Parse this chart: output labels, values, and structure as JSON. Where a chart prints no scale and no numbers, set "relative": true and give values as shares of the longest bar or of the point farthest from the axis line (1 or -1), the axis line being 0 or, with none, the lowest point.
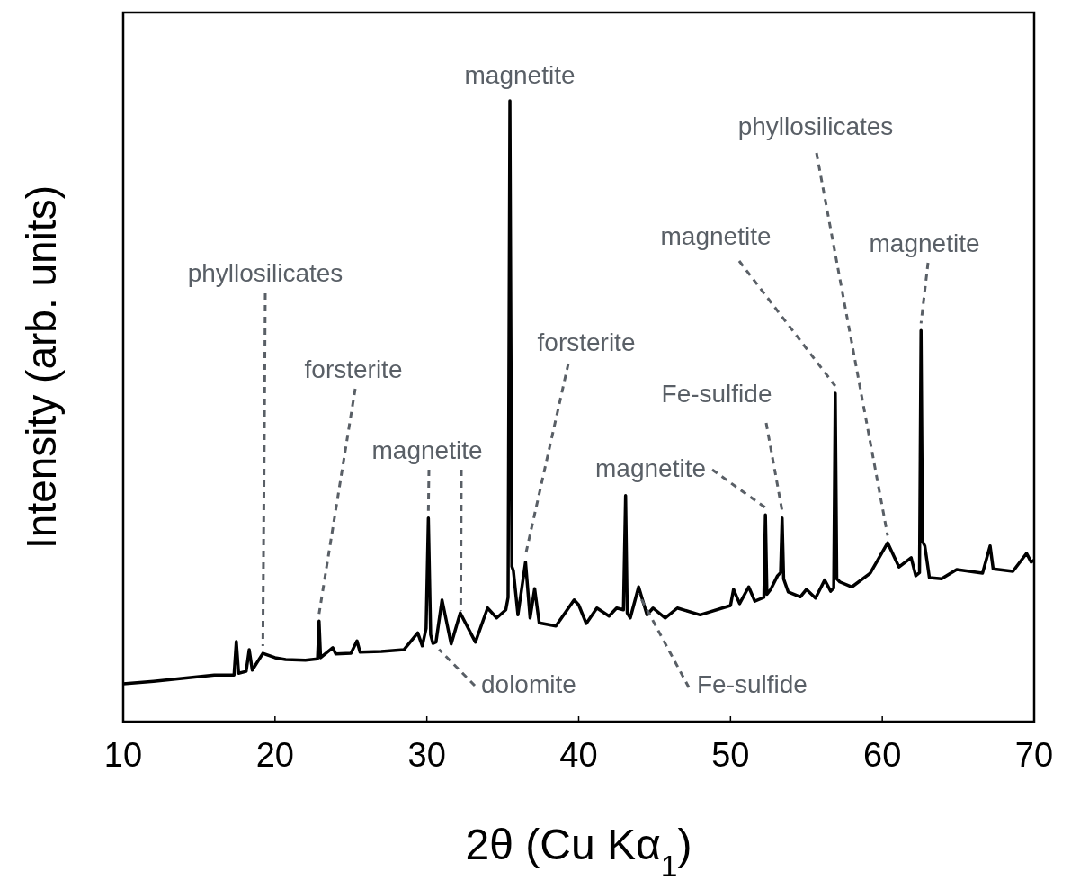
{
  "chart_data": {
    "type": "line",
    "relative": true,
    "xlabel": "2θ (Cu Kα$_{1}$)",
    "ylabel": "Intensity (arb. units)",
    "xlim": [
      10,
      70
    ],
    "xticks": [
      10,
      20,
      30,
      40,
      50,
      60,
      70
    ],
    "marker": "none",
    "line_style": "solid",
    "series": [
      {
        "color": "#000000",
        "x": [
          10,
          12,
          14,
          16,
          17.3,
          17.45,
          17.6,
          18.1,
          18.3,
          18.5,
          19.2,
          20.0,
          20.7,
          22.0,
          22.8,
          22.9,
          23.0,
          23.8,
          24.0,
          25.0,
          25.4,
          25.6,
          27.0,
          28.5,
          29.4,
          29.7,
          29.95,
          30.1,
          30.25,
          30.4,
          30.6,
          31.0,
          31.6,
          32.2,
          33.2,
          34.0,
          34.6,
          35.2,
          35.35,
          35.47,
          35.6,
          35.7,
          36.0,
          36.5,
          36.8,
          37.1,
          37.4,
          38.5,
          39.7,
          40.0,
          40.5,
          41.2,
          42.0,
          42.5,
          42.95,
          43.09,
          43.2,
          43.4,
          43.95,
          44.5,
          44.9,
          45.7,
          46.5,
          48.0,
          50.0,
          50.2,
          50.6,
          51.2,
          51.6,
          52.2,
          52.3,
          52.4,
          52.65,
          53.1,
          53.3,
          53.4,
          53.5,
          53.8,
          54.6,
          55.0,
          55.6,
          56.2,
          56.6,
          56.8,
          56.9,
          57.0,
          57.2,
          58.0,
          59.2,
          60.35,
          61.1,
          61.9,
          62.2,
          62.45,
          62.55,
          62.65,
          62.8,
          63.1,
          63.9,
          64.9,
          66.6,
          67.1,
          67.3,
          68.6,
          69.5,
          69.8,
          70
        ],
        "values": [
          0.061,
          0.065,
          0.07,
          0.075,
          0.075,
          0.129,
          0.078,
          0.081,
          0.116,
          0.083,
          0.11,
          0.103,
          0.1,
          0.099,
          0.101,
          0.162,
          0.103,
          0.119,
          0.109,
          0.11,
          0.13,
          0.112,
          0.113,
          0.116,
          0.143,
          0.122,
          0.15,
          0.328,
          0.14,
          0.126,
          0.128,
          0.196,
          0.125,
          0.175,
          0.128,
          0.183,
          0.167,
          0.18,
          0.2,
          1.0,
          0.25,
          0.243,
          0.172,
          0.257,
          0.167,
          0.214,
          0.159,
          0.154,
          0.196,
          0.188,
          0.158,
          0.183,
          0.17,
          0.183,
          0.18,
          0.364,
          0.175,
          0.167,
          0.217,
          0.172,
          0.183,
          0.167,
          0.183,
          0.172,
          0.187,
          0.213,
          0.19,
          0.217,
          0.194,
          0.2,
          0.333,
          0.205,
          0.213,
          0.235,
          0.24,
          0.328,
          0.23,
          0.209,
          0.201,
          0.213,
          0.199,
          0.228,
          0.21,
          0.215,
          0.529,
          0.23,
          0.225,
          0.217,
          0.239,
          0.288,
          0.249,
          0.264,
          0.235,
          0.24,
          0.63,
          0.29,
          0.283,
          0.232,
          0.23,
          0.245,
          0.239,
          0.283,
          0.246,
          0.242,
          0.271,
          0.257,
          0.26
        ]
      }
    ],
    "annotations": [
      {
        "text": "phyllosilicates",
        "x": 19.2,
        "y": 0.11
      },
      {
        "text": "forsterite",
        "x": 22.9,
        "y": 0.162
      },
      {
        "text": "magnetite",
        "x": 30.1,
        "y": 0.328
      },
      {
        "text": "dolomite",
        "x": 30.8,
        "y": 0.128
      },
      {
        "text": "magnetite",
        "x": 35.47,
        "y": 1.0
      },
      {
        "text": "forsterite",
        "x": 36.5,
        "y": 0.257
      },
      {
        "text": "magnetite",
        "x": 52.3,
        "y": 0.333
      },
      {
        "text": "Fe-sulfide",
        "x": 53.4,
        "y": 0.328
      },
      {
        "text": "magnetite",
        "x": 56.9,
        "y": 0.529
      },
      {
        "text": "phyllosilicates",
        "x": 60.35,
        "y": 0.288
      },
      {
        "text": "magnetite",
        "x": 62.55,
        "y": 0.63
      },
      {
        "text": "Fe-sulfide",
        "x": 43.95,
        "y": 0.217
      }
    ]
  }
}
